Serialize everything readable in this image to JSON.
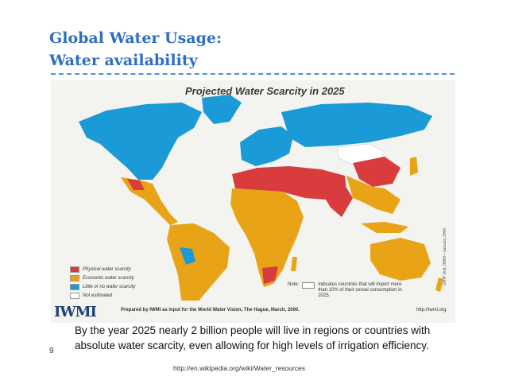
{
  "slide": {
    "title_line1": "Global Water Usage:",
    "title_line2": "Water availability",
    "caption": "By the year 2025 nearly 2 billion people will live in regions or countries with absolute water scarcity, even allowing for high levels of irrigation efficiency.",
    "slide_number": "9",
    "source": "http://en.wikipedia.org/wiki/Water_resources"
  },
  "map": {
    "title": "Projected Water Scarcity in 2025",
    "legend": [
      {
        "label": "Physical water scarcity",
        "color": "#d93c3c"
      },
      {
        "label": "Economic water scarcity",
        "color": "#e8a317"
      },
      {
        "label": "Little or no water scarcity",
        "color": "#1a9ad6"
      },
      {
        "label": "Not estimated",
        "color": "#ffffff"
      }
    ],
    "note_label": "Note:",
    "note_text": "indicates countries that will import more than 10% of their cereal consumption in 2025.",
    "side_credit": "GRIP Unit, IWMI—January 2000",
    "logo_text": "IWMI",
    "prepared_by": "Prepared by IWMI as input for the World Water Vision, The Hague, March, 2000.",
    "iwmi_url": "http://iwmi.org"
  },
  "colors": {
    "title": "#2f6fc0",
    "physical": "#d93c3c",
    "economic": "#e8a317",
    "little": "#1a9ad6",
    "background": "#f3f3ef"
  }
}
